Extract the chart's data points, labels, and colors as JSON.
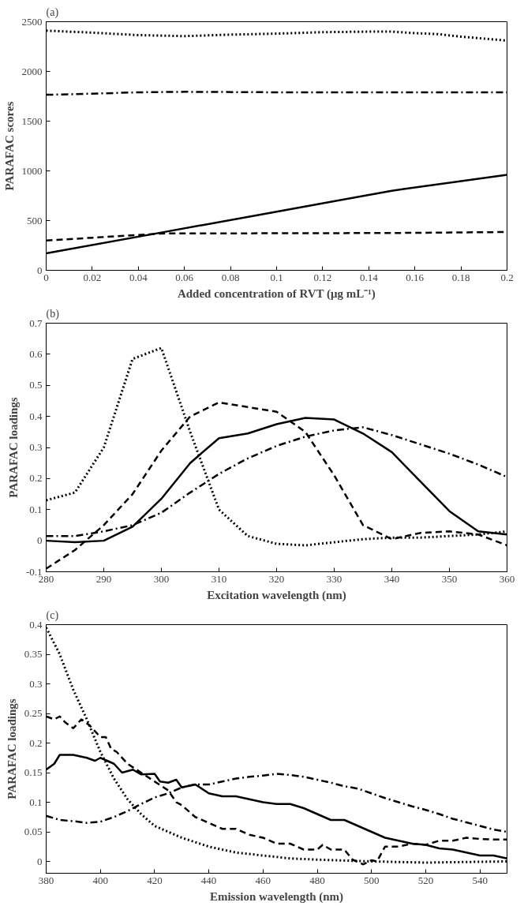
{
  "chart_data": [
    {
      "type": "line",
      "title": "(a)",
      "xlabel": "Added concentration of RVT (μg mL⁻¹)",
      "ylabel": "PARAFAC scores",
      "xlim": [
        0,
        0.2
      ],
      "ylim": [
        0,
        2500
      ],
      "xticks": [
        0,
        0.02,
        0.04,
        0.06,
        0.08,
        0.1,
        0.12,
        0.14,
        0.16,
        0.18,
        0.2
      ],
      "yticks": [
        0,
        500,
        1000,
        1500,
        2000,
        2500
      ],
      "grid": false,
      "series": [
        {
          "color": "#000000",
          "line_style": "dotted",
          "x": [
            0,
            0.02,
            0.04,
            0.06,
            0.08,
            0.1,
            0.12,
            0.14,
            0.15,
            0.16,
            0.17,
            0.18,
            0.2
          ],
          "values": [
            2410,
            2390,
            2365,
            2355,
            2370,
            2380,
            2395,
            2400,
            2400,
            2385,
            2375,
            2350,
            2310
          ]
        },
        {
          "color": "#000000",
          "line_style": "dashdot",
          "x": [
            0,
            0.01,
            0.04,
            0.06,
            0.1,
            0.2
          ],
          "values": [
            1765,
            1770,
            1790,
            1795,
            1790,
            1790
          ]
        },
        {
          "color": "#000000",
          "line_style": "solid",
          "x": [
            0,
            0.05,
            0.1,
            0.15,
            0.2
          ],
          "values": [
            170,
            380,
            590,
            800,
            960
          ]
        },
        {
          "color": "#000000",
          "line_style": "dashed",
          "x": [
            0,
            0.04,
            0.05,
            0.15,
            0.2
          ],
          "values": [
            300,
            355,
            370,
            375,
            385
          ]
        }
      ]
    },
    {
      "type": "line",
      "title": "(b)",
      "xlabel": "Excitation wavelength (nm)",
      "ylabel": "PARAFAC loadings",
      "xlim": [
        280,
        360
      ],
      "ylim": [
        -0.1,
        0.7
      ],
      "xticks": [
        280,
        290,
        300,
        310,
        320,
        330,
        340,
        350,
        360
      ],
      "yticks": [
        -0.1,
        0,
        0.1,
        0.2,
        0.3,
        0.4,
        0.5,
        0.6,
        0.7
      ],
      "grid": false,
      "x": [
        280,
        285,
        290,
        295,
        300,
        305,
        310,
        315,
        320,
        325,
        330,
        335,
        340,
        345,
        350,
        355,
        360
      ],
      "series": [
        {
          "color": "#000000",
          "line_style": "dotted",
          "values": [
            0.13,
            0.155,
            0.3,
            0.585,
            0.62,
            0.35,
            0.1,
            0.015,
            -0.01,
            -0.015,
            -0.005,
            0.005,
            0.01,
            0.01,
            0.015,
            0.02,
            0.03
          ]
        },
        {
          "color": "#000000",
          "line_style": "dashed",
          "values": [
            -0.09,
            -0.03,
            0.05,
            0.15,
            0.29,
            0.4,
            0.445,
            0.43,
            0.415,
            0.35,
            0.21,
            0.05,
            0.005,
            0.025,
            0.03,
            0.02,
            -0.015
          ]
        },
        {
          "color": "#000000",
          "line_style": "solid",
          "values": [
            0.0,
            -0.005,
            0.0,
            0.045,
            0.135,
            0.25,
            0.33,
            0.345,
            0.375,
            0.395,
            0.39,
            0.345,
            0.285,
            0.19,
            0.095,
            0.03,
            0.02
          ]
        },
        {
          "color": "#000000",
          "line_style": "dashdot",
          "values": [
            0.015,
            0.015,
            0.03,
            0.05,
            0.09,
            0.155,
            0.215,
            0.265,
            0.305,
            0.335,
            0.355,
            0.365,
            0.34,
            0.31,
            0.28,
            0.245,
            0.205
          ]
        }
      ]
    },
    {
      "type": "line",
      "title": "(c)",
      "xlabel": "Emission wavelength (nm)",
      "ylabel": "PARAFAC loadings",
      "xlim": [
        380,
        550
      ],
      "ylim": [
        -0.02,
        0.4
      ],
      "xticks": [
        380,
        400,
        420,
        440,
        460,
        480,
        500,
        520,
        540
      ],
      "yticks": [
        0,
        0.05,
        0.1,
        0.15,
        0.2,
        0.25,
        0.3,
        0.35,
        0.4
      ],
      "grid": false,
      "series": [
        {
          "color": "#000000",
          "line_style": "dotted",
          "x": [
            380,
            385,
            390,
            395,
            400,
            405,
            410,
            415,
            420,
            430,
            440,
            450,
            460,
            470,
            480,
            500,
            520,
            550
          ],
          "values": [
            0.395,
            0.35,
            0.29,
            0.24,
            0.185,
            0.14,
            0.105,
            0.08,
            0.06,
            0.04,
            0.025,
            0.015,
            0.01,
            0.005,
            0.003,
            0.0,
            -0.002,
            0.0
          ]
        },
        {
          "color": "#000000",
          "line_style": "dashed",
          "x": [
            380,
            383,
            385,
            387,
            390,
            393,
            396,
            400,
            402,
            404,
            406,
            410,
            415,
            420,
            425,
            428,
            430,
            435,
            440,
            445,
            450,
            455,
            460,
            465,
            470,
            475,
            480,
            482,
            485,
            490,
            493,
            497,
            500,
            502,
            505,
            510,
            515,
            520,
            525,
            530,
            535,
            540,
            545,
            550
          ],
          "values": [
            0.245,
            0.24,
            0.245,
            0.235,
            0.225,
            0.24,
            0.23,
            0.21,
            0.21,
            0.19,
            0.185,
            0.165,
            0.15,
            0.135,
            0.12,
            0.1,
            0.095,
            0.075,
            0.065,
            0.055,
            0.055,
            0.045,
            0.04,
            0.03,
            0.03,
            0.02,
            0.02,
            0.028,
            0.02,
            0.02,
            0.003,
            -0.005,
            0.002,
            0.0,
            0.025,
            0.025,
            0.03,
            0.028,
            0.035,
            0.035,
            0.04,
            0.038,
            0.037,
            0.037
          ]
        },
        {
          "color": "#000000",
          "line_style": "solid",
          "x": [
            380,
            383,
            385,
            390,
            395,
            398,
            400,
            405,
            408,
            412,
            415,
            420,
            422,
            425,
            428,
            430,
            435,
            440,
            445,
            450,
            455,
            460,
            465,
            470,
            475,
            480,
            485,
            490,
            495,
            500,
            505,
            510,
            515,
            520,
            525,
            530,
            535,
            540,
            545,
            550
          ],
          "values": [
            0.155,
            0.165,
            0.18,
            0.18,
            0.175,
            0.17,
            0.175,
            0.165,
            0.15,
            0.155,
            0.147,
            0.148,
            0.135,
            0.133,
            0.138,
            0.125,
            0.13,
            0.115,
            0.11,
            0.11,
            0.105,
            0.1,
            0.097,
            0.097,
            0.09,
            0.08,
            0.07,
            0.07,
            0.06,
            0.05,
            0.04,
            0.035,
            0.03,
            0.028,
            0.022,
            0.02,
            0.015,
            0.01,
            0.01,
            0.005
          ]
        },
        {
          "color": "#000000",
          "line_style": "dashdot",
          "x": [
            380,
            385,
            390,
            395,
            400,
            405,
            410,
            415,
            420,
            425,
            430,
            435,
            440,
            445,
            450,
            455,
            460,
            465,
            470,
            475,
            480,
            485,
            490,
            495,
            500,
            505,
            510,
            515,
            520,
            525,
            530,
            535,
            540,
            545,
            550
          ],
          "values": [
            0.077,
            0.07,
            0.068,
            0.065,
            0.067,
            0.075,
            0.085,
            0.097,
            0.108,
            0.115,
            0.125,
            0.13,
            0.13,
            0.135,
            0.14,
            0.143,
            0.145,
            0.148,
            0.146,
            0.143,
            0.138,
            0.133,
            0.127,
            0.123,
            0.115,
            0.107,
            0.1,
            0.093,
            0.087,
            0.08,
            0.072,
            0.066,
            0.06,
            0.054,
            0.05
          ]
        }
      ]
    }
  ]
}
